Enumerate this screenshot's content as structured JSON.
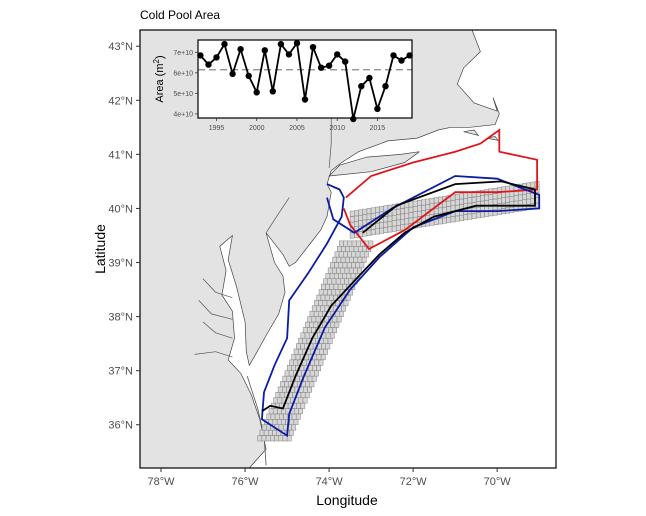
{
  "chart_data": [
    {
      "type": "map",
      "title": "Cold Pool Area",
      "xlabel": "Longitude",
      "ylabel": "Latitude",
      "xlim": [
        -78.5,
        -68.6
      ],
      "ylim": [
        35.2,
        43.3
      ],
      "x_ticks": [
        -78,
        -76,
        -74,
        -72,
        -70
      ],
      "x_tick_labels": [
        "78°W",
        "76°W",
        "74°W",
        "72°W",
        "70°W"
      ],
      "y_ticks": [
        36,
        37,
        38,
        39,
        40,
        41,
        42,
        43
      ],
      "y_tick_labels": [
        "36°N",
        "37°N",
        "38°N",
        "39°N",
        "40°N",
        "41°N",
        "42°N",
        "43°N"
      ],
      "colors": {
        "land": "#e3e3e3",
        "water": "#ffffff",
        "grid_outline": "#808080",
        "red_outline": "#e0151b",
        "blue_outline": "#0b1ba6",
        "black_outline": "#000000"
      },
      "outlines": [
        {
          "color": "red",
          "points": [
            [
              -73.6,
              40.2
            ],
            [
              -73.0,
              40.6
            ],
            [
              -72.0,
              40.85
            ],
            [
              -71.0,
              41.05
            ],
            [
              -70.4,
              41.2
            ],
            [
              -69.95,
              41.45
            ],
            [
              -69.95,
              41.05
            ],
            [
              -69.05,
              40.9
            ],
            [
              -69.05,
              40.35
            ],
            [
              -70.0,
              40.3
            ],
            [
              -71.0,
              40.3
            ],
            [
              -72.2,
              39.6
            ],
            [
              -73.05,
              39.25
            ],
            [
              -73.5,
              39.7
            ],
            [
              -73.65,
              40.0
            ]
          ]
        },
        {
          "color": "blue",
          "points": [
            [
              -74.05,
              40.45
            ],
            [
              -73.75,
              40.35
            ],
            [
              -73.65,
              40.2
            ],
            [
              -73.7,
              39.85
            ],
            [
              -74.05,
              39.35
            ],
            [
              -74.5,
              38.8
            ],
            [
              -74.95,
              38.3
            ],
            [
              -75.0,
              37.6
            ],
            [
              -75.3,
              37.1
            ],
            [
              -75.55,
              36.6
            ],
            [
              -75.6,
              36.1
            ],
            [
              -75.0,
              35.8
            ],
            [
              -74.95,
              36.2
            ],
            [
              -74.6,
              36.9
            ],
            [
              -74.1,
              37.8
            ],
            [
              -73.5,
              38.5
            ],
            [
              -72.8,
              39.1
            ],
            [
              -72.0,
              39.65
            ],
            [
              -71.0,
              39.95
            ],
            [
              -70.0,
              39.95
            ],
            [
              -69.0,
              40.0
            ],
            [
              -69.0,
              40.25
            ],
            [
              -70.0,
              40.55
            ],
            [
              -71.0,
              40.6
            ],
            [
              -72.5,
              40.0
            ],
            [
              -73.4,
              39.55
            ],
            [
              -73.9,
              39.8
            ],
            [
              -74.05,
              40.2
            ]
          ]
        },
        {
          "color": "black",
          "points": [
            [
              -75.6,
              36.25
            ],
            [
              -75.4,
              36.35
            ],
            [
              -75.1,
              36.3
            ],
            [
              -74.8,
              36.9
            ],
            [
              -74.4,
              37.6
            ],
            [
              -73.95,
              38.2
            ],
            [
              -73.35,
              38.7
            ],
            [
              -72.8,
              39.15
            ],
            [
              -72.2,
              39.55
            ],
            [
              -71.5,
              39.85
            ],
            [
              -70.5,
              40.05
            ],
            [
              -69.1,
              40.05
            ],
            [
              -69.1,
              40.35
            ],
            [
              -69.9,
              40.5
            ],
            [
              -71.0,
              40.45
            ],
            [
              -72.4,
              40.05
            ],
            [
              -73.2,
              39.55
            ]
          ]
        }
      ]
    },
    {
      "type": "line",
      "ylabel": "Area (m",
      "ylabel_sup": "2",
      "ylabel_close": ")",
      "xlim": [
        1992.7,
        2019.3
      ],
      "ylim": [
        38000000000.0,
        76000000000.0
      ],
      "x_ticks": [
        1995,
        2000,
        2005,
        2010,
        2015
      ],
      "x_tick_labels": [
        "1995",
        "2000",
        "2005",
        "2010",
        "2015"
      ],
      "y_ticks": [
        40000000000.0,
        50000000000.0,
        60000000000.0,
        70000000000.0
      ],
      "y_tick_labels": [
        "4e+10",
        "5e+10",
        "6e+10",
        "7e+10"
      ],
      "mean_line": 61500000000.0,
      "x": [
        1993,
        1994,
        1995,
        1996,
        1997,
        1998,
        1999,
        2000,
        2001,
        2002,
        2003,
        2004,
        2005,
        2006,
        2007,
        2008,
        2009,
        2010,
        2011,
        2012,
        2013,
        2014,
        2015,
        2016,
        2017,
        2018,
        2019
      ],
      "values": [
        68500000000.0,
        64000000000.0,
        67500000000.0,
        74000000000.0,
        59500000000.0,
        71500000000.0,
        58500000000.0,
        50500000000.0,
        71000000000.0,
        51000000000.0,
        74000000000.0,
        69000000000.0,
        74500000000.0,
        47000000000.0,
        72500000000.0,
        62500000000.0,
        63500000000.0,
        69000000000.0,
        65500000000.0,
        37500000000.0,
        53500000000.0,
        57500000000.0,
        42500000000.0,
        53500000000.0,
        68500000000.0,
        66000000000.0,
        68500000000.0
      ]
    }
  ]
}
